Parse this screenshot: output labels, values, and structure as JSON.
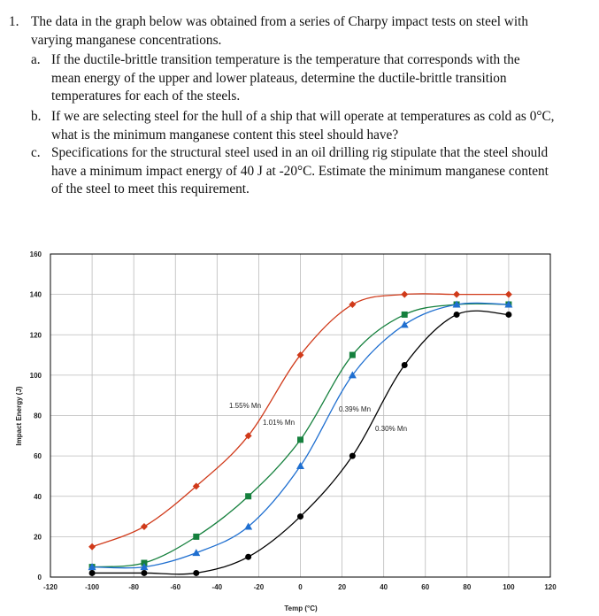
{
  "question": {
    "number": "1.",
    "text": "The data in the graph below was obtained from a series of Charpy impact tests on steel with varying manganese concentrations.",
    "items": [
      {
        "marker": "a.",
        "text": "If the ductile-brittle transition temperature is the temperature that corresponds with the mean energy of the upper and lower plateaus, determine the ductile-brittle transition temperatures for each of the steels."
      },
      {
        "marker": "b.",
        "text": "If we are selecting steel for the hull of a ship that will operate at temperatures as cold as 0°C, what is the minimum manganese content this steel should have?"
      },
      {
        "marker": "c.",
        "text": "Specifications for the structural steel used in an oil drilling rig stipulate that the steel should have a minimum impact energy of 40 J at -20°C. Estimate the minimum manganese content of the steel to meet this requirement."
      }
    ]
  },
  "chart_data": {
    "type": "line",
    "x_label": "Temp (°C)",
    "y_label": "Impact Energy (J)",
    "x": [
      -100,
      -75,
      -50,
      -25,
      0,
      25,
      50,
      75,
      100
    ],
    "series": [
      {
        "name": "1.55% Mn",
        "color": "#d03a1a",
        "marker": "diamond",
        "values": [
          15,
          25,
          45,
          70,
          110,
          135,
          140,
          140,
          140
        ]
      },
      {
        "name": "1.01% Mn",
        "color": "#15803d",
        "marker": "square",
        "values": [
          5,
          7,
          20,
          40,
          68,
          110,
          130,
          135,
          135
        ]
      },
      {
        "name": "0.39% Mn",
        "color": "#1f6fd0",
        "marker": "triangle",
        "values": [
          5,
          5,
          12,
          25,
          55,
          100,
          125,
          135,
          135
        ]
      },
      {
        "name": "0.30% Mn",
        "color": "#000000",
        "marker": "circle",
        "values": [
          2,
          2,
          2,
          10,
          30,
          60,
          105,
          130,
          130
        ]
      }
    ],
    "xlim": [
      -120,
      120
    ],
    "xticks": [
      -120,
      -100,
      -80,
      -60,
      -40,
      -20,
      0,
      20,
      40,
      60,
      80,
      100,
      120
    ],
    "ylim": [
      0,
      160
    ],
    "yticks": [
      0,
      20,
      40,
      60,
      80,
      100,
      120,
      140,
      160
    ],
    "grid": true
  }
}
